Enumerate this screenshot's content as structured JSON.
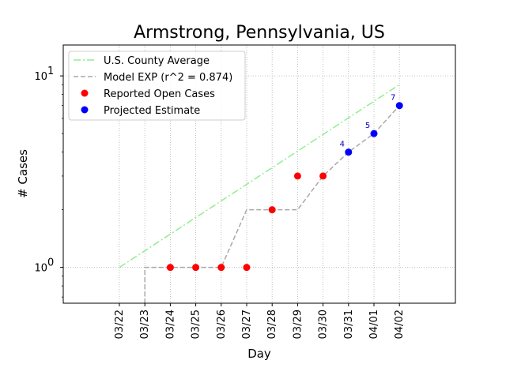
{
  "chart_data": {
    "type": "line",
    "title": "Armstrong, Pennsylvania, US",
    "xlabel": "Day",
    "ylabel": "# Cases",
    "y_scale": "log",
    "ylim": [
      0.65,
      14.5
    ],
    "x_categories": [
      "03/22",
      "03/23",
      "03/24",
      "03/25",
      "03/26",
      "03/27",
      "03/28",
      "03/29",
      "03/30",
      "03/31",
      "04/01",
      "04/02"
    ],
    "y_ticks": [
      {
        "value": 1,
        "base": "10",
        "exp": "0"
      },
      {
        "value": 10,
        "base": "10",
        "exp": "1"
      }
    ],
    "grid": true,
    "legend_position": "top-left",
    "series": [
      {
        "name": "U.S. County Average",
        "style": "dash-dot",
        "color": "#90ee90",
        "x": [
          "03/22",
          "04/02"
        ],
        "y": [
          1.0,
          9.0
        ]
      },
      {
        "name": "Model EXP (r^2 = 0.874)",
        "style": "dashed",
        "color": "#a9a9a9",
        "x": [
          "03/23",
          "03/23",
          "03/24",
          "03/25",
          "03/26",
          "03/27",
          "03/28",
          "03/29",
          "03/30",
          "03/31",
          "04/01",
          "04/02"
        ],
        "y": [
          0.65,
          1,
          1,
          1,
          1,
          2,
          2,
          2,
          3,
          4,
          5,
          7
        ]
      },
      {
        "name": "Reported Open Cases",
        "style": "marker",
        "color": "#ff0000",
        "x": [
          "03/24",
          "03/25",
          "03/26",
          "03/27",
          "03/28",
          "03/29",
          "03/30"
        ],
        "y": [
          1,
          1,
          1,
          1,
          2,
          3,
          3
        ]
      },
      {
        "name": "Projected Estimate",
        "style": "marker",
        "color": "#0000ff",
        "x": [
          "03/31",
          "04/01",
          "04/02"
        ],
        "y": [
          4,
          5,
          7
        ],
        "labels": [
          "4",
          "5",
          "7"
        ]
      }
    ]
  }
}
